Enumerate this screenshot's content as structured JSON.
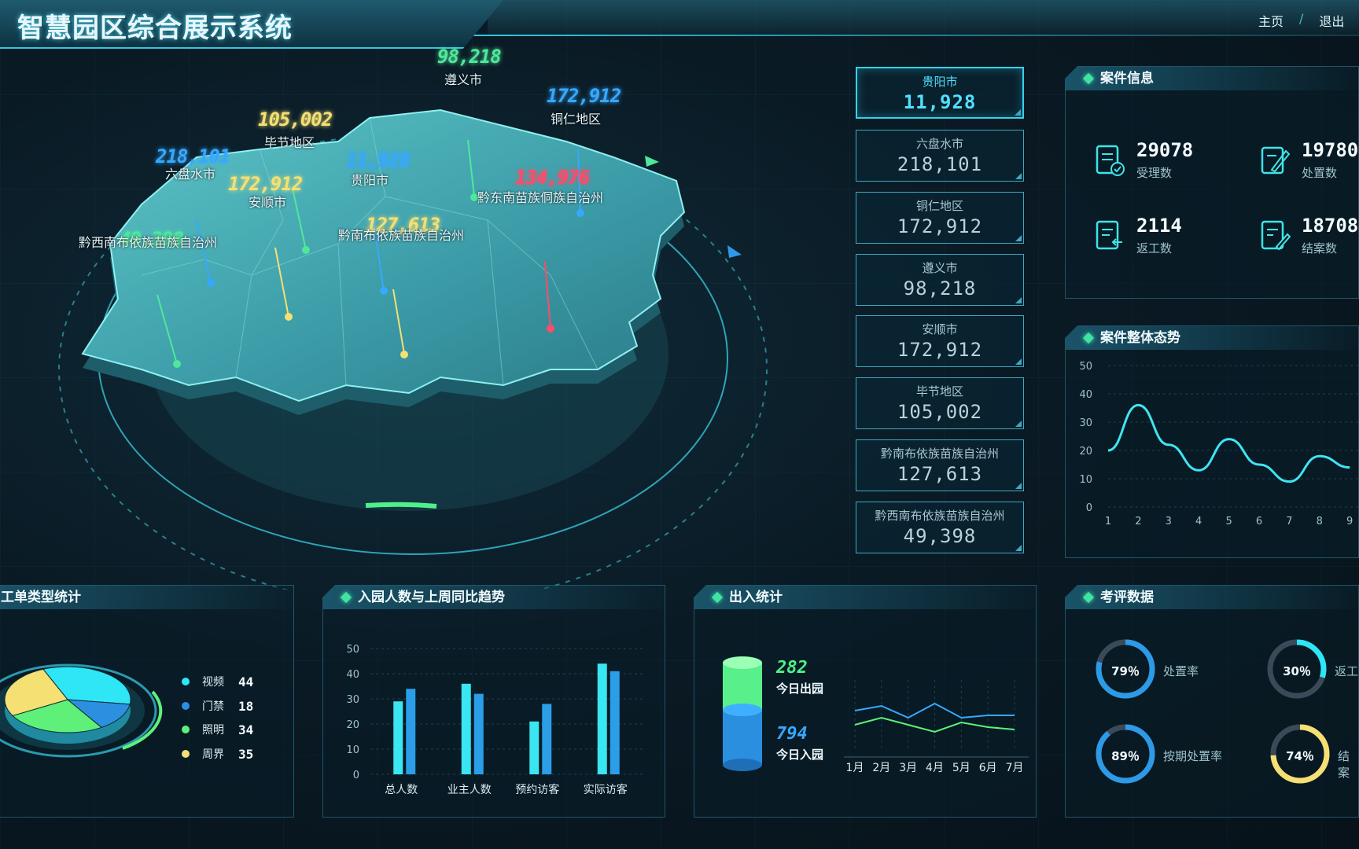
{
  "header": {
    "title": "智慧园区综合展示系统",
    "nav": [
      "主页",
      "退出"
    ]
  },
  "map": {
    "regions": [
      {
        "name": "遵义市",
        "value": "98,218",
        "color": "#4fe89a"
      },
      {
        "name": "铜仁地区",
        "value": "172,912",
        "color": "#37a8ff"
      },
      {
        "name": "毕节地区",
        "value": "105,002",
        "color": "#f4e073"
      },
      {
        "name": "六盘水市",
        "value": "218,101",
        "color": "#37a8ff"
      },
      {
        "name": "贵阳市",
        "value": "11,928",
        "color": "#37a8ff"
      },
      {
        "name": "安顺市",
        "value": "172,912",
        "color": "#f4e073"
      },
      {
        "name": "黔东南苗族侗族自治州",
        "value": "134,976",
        "color": "#ff4b68"
      },
      {
        "name": "黔南布依族苗族自治州",
        "value": "127,613",
        "color": "#f4e073"
      },
      {
        "name": "黔西南布依族苗族自治州",
        "value": "49,398",
        "color": "#4fe89a"
      }
    ]
  },
  "city_list": [
    {
      "name": "贵阳市",
      "value": "11,928"
    },
    {
      "name": "六盘水市",
      "value": "218,101"
    },
    {
      "name": "铜仁地区",
      "value": "172,912"
    },
    {
      "name": "遵义市",
      "value": "98,218"
    },
    {
      "name": "安顺市",
      "value": "172,912"
    },
    {
      "name": "毕节地区",
      "value": "105,002"
    },
    {
      "name": "黔南布依族苗族自治州",
      "value": "127,613"
    },
    {
      "name": "黔西南布依族苗族自治州",
      "value": "49,398"
    }
  ],
  "case_info": {
    "title": "案件信息",
    "stats": [
      {
        "value": "29078",
        "label": "受理数",
        "icon": "document-check-icon"
      },
      {
        "value": "19780",
        "label": "处置数",
        "icon": "document-edit-icon"
      },
      {
        "value": "2114",
        "label": "返工数",
        "icon": "document-return-icon"
      },
      {
        "value": "18708",
        "label": "结案数",
        "icon": "document-pen-icon"
      }
    ]
  },
  "case_trend": {
    "title": "案件整体态势",
    "chart_data": {
      "type": "line",
      "x": [
        1,
        2,
        3,
        4,
        5,
        6,
        7,
        8,
        9
      ],
      "series": [
        {
          "values": [
            20,
            36,
            22,
            13,
            24,
            15,
            9,
            18,
            14
          ]
        }
      ],
      "ylim": [
        0,
        50
      ],
      "yticks": [
        0,
        10,
        20,
        30,
        40,
        50
      ],
      "xlabel": "",
      "ylabel": "",
      "title": ""
    }
  },
  "work_order": {
    "title": "工单类型统计",
    "chart_data": {
      "type": "pie",
      "categories": [
        "视频",
        "门禁",
        "照明",
        "周界"
      ],
      "values": [
        44,
        18,
        34,
        35
      ],
      "colors": [
        "#2ee6f5",
        "#2d8fe0",
        "#5ff07a",
        "#f4e073"
      ]
    }
  },
  "visitor_trend": {
    "title": "入园人数与上周同比趋势",
    "chart_data": {
      "type": "bar",
      "categories": [
        "总人数",
        "业主人数",
        "预约访客",
        "实际访客"
      ],
      "series": [
        {
          "values": [
            29,
            36,
            21,
            44
          ]
        },
        {
          "values": [
            34,
            32,
            28,
            41
          ]
        }
      ],
      "ylim": [
        0,
        50
      ],
      "yticks": [
        0,
        10,
        20,
        30,
        40,
        50
      ]
    }
  },
  "access_stats": {
    "title": "出入统计",
    "out_value": "282",
    "out_label": "今日出园",
    "in_value": "794",
    "in_label": "今日入园",
    "chart_data": {
      "type": "line",
      "categories": [
        "1月",
        "2月",
        "3月",
        "4月",
        "5月",
        "6月",
        "7月"
      ],
      "series": [
        {
          "values": [
            27,
            29,
            24,
            30,
            24,
            25,
            25
          ],
          "color": "#37a8ff"
        },
        {
          "values": [
            21,
            24,
            21,
            18,
            22,
            20,
            19
          ],
          "color": "#5ff07a"
        }
      ]
    }
  },
  "evaluation": {
    "title": "考评数据",
    "rings": [
      {
        "pct": 79,
        "pct_text": "79％",
        "label": "处置率",
        "color": "#2d9ae8"
      },
      {
        "pct": 30,
        "pct_text": "30％",
        "label": "返工",
        "color": "#2ee6f5"
      },
      {
        "pct": 89,
        "pct_text": "89％",
        "label": "按期处置率",
        "color": "#2d9ae8"
      },
      {
        "pct": 74,
        "pct_text": "74％",
        "label": "结案",
        "color": "#f4e073"
      }
    ]
  }
}
